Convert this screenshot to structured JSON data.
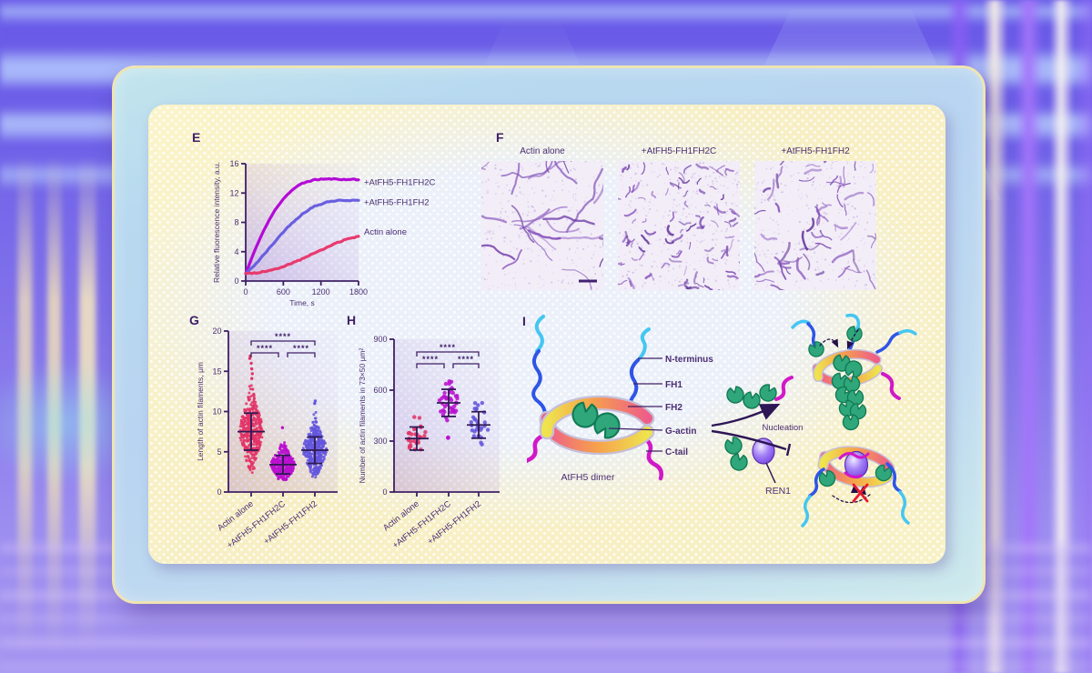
{
  "scene": {
    "description": "Multi-panel scientific figure (panels E to I) about AtFH5 formin and actin filaments, shown on a decorative purple backdrop",
    "card_border_color": "#efe5b2",
    "figure_text_color": "#4b2e72"
  },
  "panel_e": {
    "label": "E"
  },
  "panel_f": {
    "label": "F",
    "images": [
      {
        "label": "Actin alone",
        "filaments": 26,
        "len_min": 30,
        "len_max": 85,
        "wobble": 0.9,
        "speckles": 320,
        "scalebar": true
      },
      {
        "label": "+AtFH5-FH1FH2C",
        "filaments": 95,
        "len_min": 4,
        "len_max": 14,
        "wobble": 1.3,
        "speckles": 430,
        "scalebar": false
      },
      {
        "label": "+AtFH5-FH1FH2",
        "filaments": 58,
        "len_min": 7,
        "len_max": 26,
        "wobble": 1.1,
        "speckles": 380,
        "scalebar": false
      }
    ]
  },
  "panel_g": {
    "label": "G"
  },
  "panel_h": {
    "label": "H"
  },
  "panel_i": {
    "label": "I",
    "caption": "AtFH5 dimer",
    "annotations": {
      "nucleation": "Nucleation",
      "ren1": "REN1"
    },
    "legend": [
      {
        "key": "n_terminus",
        "text": "N-terminus",
        "color": "#45c6f2"
      },
      {
        "key": "fh1",
        "text": "FH1",
        "color": "#4336cf"
      },
      {
        "key": "fh2",
        "text": "FH2",
        "color": "#f5923e"
      },
      {
        "key": "g_actin",
        "text": "G-actin",
        "color": "#1ea878"
      },
      {
        "key": "c_tail",
        "text": "C-tail",
        "color": "#e23ecb"
      }
    ]
  },
  "chart_data": [
    {
      "id": "e",
      "panel": "E",
      "type": "line",
      "xlabel": "Time, s",
      "ylabel": "Relative fluorescence intensity, a.u.",
      "xlim": [
        0,
        1800
      ],
      "ylim": [
        0,
        16
      ],
      "xticks": [
        0,
        600,
        1200,
        1800
      ],
      "yticks": [
        0,
        4,
        8,
        12,
        16
      ],
      "legend_position": "right-of-curve-ends",
      "series": [
        {
          "name": "+AtFH5-FH1FH2C",
          "color": "#b30ad6",
          "x": [
            0,
            100,
            200,
            300,
            400,
            500,
            600,
            700,
            800,
            900,
            1000,
            1100,
            1200,
            1300,
            1400,
            1500,
            1600,
            1700,
            1800
          ],
          "y": [
            1.0,
            3.2,
            5.3,
            7.1,
            8.7,
            10.1,
            11.2,
            12.1,
            12.8,
            13.3,
            13.6,
            13.8,
            13.9,
            13.9,
            13.9,
            13.9,
            13.8,
            13.9,
            13.8
          ]
        },
        {
          "name": "+AtFH5-FH1FH2",
          "color": "#6a5fe0",
          "x": [
            0,
            100,
            200,
            300,
            400,
            500,
            600,
            700,
            800,
            900,
            1000,
            1100,
            1200,
            1300,
            1400,
            1500,
            1600,
            1700,
            1800
          ],
          "y": [
            1.0,
            1.8,
            2.7,
            3.7,
            4.7,
            5.7,
            6.7,
            7.6,
            8.4,
            9.1,
            9.7,
            10.2,
            10.5,
            10.8,
            10.9,
            11.0,
            11.0,
            11.0,
            11.0
          ]
        },
        {
          "name": "Actin alone",
          "color": "#e83a6e",
          "x": [
            0,
            100,
            200,
            300,
            400,
            500,
            600,
            700,
            800,
            900,
            1000,
            1100,
            1200,
            1300,
            1400,
            1500,
            1600,
            1700,
            1800
          ],
          "y": [
            1.0,
            1.05,
            1.15,
            1.3,
            1.5,
            1.7,
            2.0,
            2.3,
            2.65,
            3.0,
            3.4,
            3.8,
            4.2,
            4.6,
            5.0,
            5.35,
            5.65,
            5.9,
            6.1
          ]
        }
      ]
    },
    {
      "id": "g",
      "panel": "G",
      "type": "scatter-beeswarm",
      "ylabel": "Length of actin filaments, μm",
      "ylim": [
        0,
        20
      ],
      "yticks": [
        0,
        5,
        10,
        15,
        20
      ],
      "categories": [
        "Actin alone",
        "+AtFH5-FH1FH2C",
        "+AtFH5-FH1FH2"
      ],
      "groups": [
        {
          "name": "Actin alone",
          "color": "#e23368",
          "mean": 7.5,
          "sd": 2.3,
          "n": 400,
          "min": 2.4,
          "max": 13.6,
          "outliers": [
            14.1,
            14.7,
            15.3,
            16.0,
            16.6,
            16.9
          ]
        },
        {
          "name": "+AtFH5-FH1FH2C",
          "color": "#ba10cf",
          "mean": 3.4,
          "sd": 1.15,
          "n": 340,
          "min": 1.5,
          "max": 6.6,
          "outliers": [
            8.0
          ]
        },
        {
          "name": "+AtFH5-FH1FH2",
          "color": "#6456de",
          "mean": 5.2,
          "sd": 1.65,
          "n": 370,
          "min": 1.8,
          "max": 10.6,
          "outliers": [
            11.0,
            11.3
          ]
        }
      ],
      "significance": [
        {
          "pair": [
            0,
            2
          ],
          "label": "****",
          "level": 2
        },
        {
          "pair": [
            0,
            1
          ],
          "label": "****",
          "level": 1
        },
        {
          "pair": [
            1,
            2
          ],
          "label": "****",
          "level": 1
        }
      ]
    },
    {
      "id": "h",
      "panel": "H",
      "type": "scatter-beeswarm",
      "ylabel": "Number of actin filaments in 73×50 μm²",
      "ylim": [
        0,
        900
      ],
      "yticks": [
        0,
        300,
        600,
        900
      ],
      "categories": [
        "Actin alone",
        "+AtFH5-FH1FH2C",
        "+AtFH5-FH1FH2"
      ],
      "groups": [
        {
          "name": "Actin alone",
          "color": "#e23368",
          "mean": 315,
          "sd": 68,
          "n": 30,
          "min": 215,
          "max": 455,
          "outliers": []
        },
        {
          "name": "+AtFH5-FH1FH2C",
          "color": "#ba10cf",
          "mean": 525,
          "sd": 80,
          "n": 40,
          "min": 420,
          "max": 665,
          "outliers": [
            320
          ]
        },
        {
          "name": "+AtFH5-FH1FH2",
          "color": "#6456de",
          "mean": 395,
          "sd": 78,
          "n": 30,
          "min": 270,
          "max": 555,
          "outliers": []
        }
      ],
      "significance": [
        {
          "pair": [
            0,
            2
          ],
          "label": "****",
          "level": 2
        },
        {
          "pair": [
            0,
            1
          ],
          "label": "****",
          "level": 1
        },
        {
          "pair": [
            1,
            2
          ],
          "label": "****",
          "level": 1
        }
      ]
    }
  ]
}
